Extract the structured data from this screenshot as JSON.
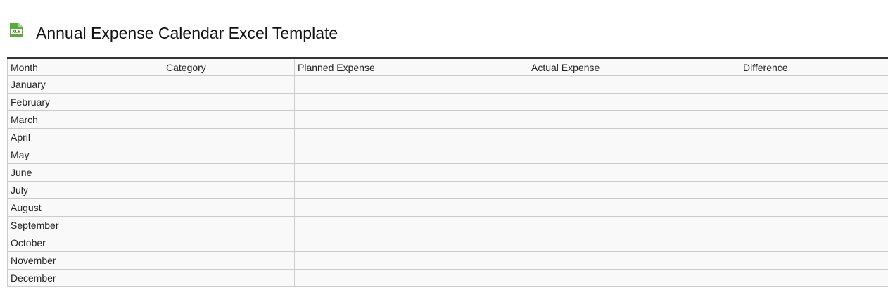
{
  "header": {
    "icon_label": "XLS",
    "title": "Annual Expense Calendar Excel Template"
  },
  "table": {
    "columns": [
      "Month",
      "Category",
      "Planned Expense",
      "Actual Expense",
      "Difference"
    ],
    "rows": [
      [
        "January"
      ],
      [
        "February"
      ],
      [
        "March"
      ],
      [
        "April"
      ],
      [
        "May"
      ],
      [
        "June"
      ],
      [
        "July"
      ],
      [
        "August"
      ],
      [
        "September"
      ],
      [
        "October"
      ],
      [
        "November"
      ],
      [
        "December"
      ]
    ]
  }
}
